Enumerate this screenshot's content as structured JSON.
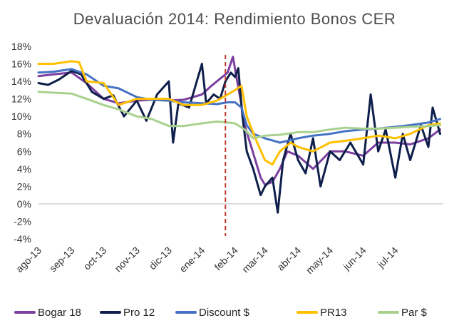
{
  "chart_data": {
    "type": "line",
    "title": "Devaluación 2014: Rendimiento Bonos CER",
    "xlabel": "",
    "ylabel": "",
    "ylim": [
      -4,
      18
    ],
    "y_ticks": [
      -4,
      -2,
      0,
      2,
      4,
      6,
      8,
      10,
      12,
      14,
      16,
      18
    ],
    "y_tick_labels": [
      "-4%",
      "-2%",
      "0%",
      "2%",
      "4%",
      "6%",
      "8%",
      "10%",
      "12%",
      "14%",
      "16%",
      "18%"
    ],
    "x_tick_labels": [
      "ago-13",
      "sep-13",
      "oct-13",
      "nov-13",
      "dic-13",
      "ene-14",
      "feb-14",
      "mar-14",
      "abr-14",
      "may-14",
      "jun-14",
      "jul-14"
    ],
    "x_domain": [
      "2013-08-01",
      "2014-08-15"
    ],
    "grid": false,
    "legend_position": "bottom",
    "event_marker": {
      "date": "2014-01-23",
      "style": "dashed",
      "color": "#c0392b"
    },
    "series": [
      {
        "name": "Bogar 18",
        "color": "#7b3fa0",
        "points": [
          [
            "2013-08-01",
            14.6
          ],
          [
            "2013-08-15",
            14.8
          ],
          [
            "2013-09-01",
            15.0
          ],
          [
            "2013-09-15",
            13.8
          ],
          [
            "2013-10-01",
            12.0
          ],
          [
            "2013-10-15",
            11.5
          ],
          [
            "2013-11-01",
            11.8
          ],
          [
            "2013-11-15",
            11.9
          ],
          [
            "2013-12-01",
            11.8
          ],
          [
            "2013-12-15",
            11.9
          ],
          [
            "2014-01-01",
            12.5
          ],
          [
            "2014-01-10",
            13.5
          ],
          [
            "2014-01-20",
            14.5
          ],
          [
            "2014-01-25",
            15.0
          ],
          [
            "2014-01-30",
            16.8
          ],
          [
            "2014-02-03",
            14.0
          ],
          [
            "2014-02-06",
            12.0
          ],
          [
            "2014-02-10",
            9.0
          ],
          [
            "2014-02-15",
            7.0
          ],
          [
            "2014-02-20",
            5.0
          ],
          [
            "2014-02-25",
            3.0
          ],
          [
            "2014-03-01",
            2.2
          ],
          [
            "2014-03-08",
            2.5
          ],
          [
            "2014-03-15",
            4.0
          ],
          [
            "2014-03-22",
            6.0
          ],
          [
            "2014-04-01",
            5.5
          ],
          [
            "2014-04-15",
            4.0
          ],
          [
            "2014-05-01",
            6.0
          ],
          [
            "2014-05-15",
            6.0
          ],
          [
            "2014-06-01",
            5.5
          ],
          [
            "2014-06-15",
            7.0
          ],
          [
            "2014-07-01",
            7.0
          ],
          [
            "2014-07-15",
            6.8
          ],
          [
            "2014-08-01",
            7.5
          ],
          [
            "2014-08-12",
            8.5
          ]
        ]
      },
      {
        "name": "Pro 12",
        "color": "#0f1f4b",
        "points": [
          [
            "2013-08-01",
            13.8
          ],
          [
            "2013-08-10",
            13.6
          ],
          [
            "2013-08-20",
            14.2
          ],
          [
            "2013-09-01",
            15.2
          ],
          [
            "2013-09-10",
            14.8
          ],
          [
            "2013-09-20",
            12.8
          ],
          [
            "2013-10-01",
            12.0
          ],
          [
            "2013-10-10",
            12.4
          ],
          [
            "2013-10-20",
            10.0
          ],
          [
            "2013-11-01",
            11.8
          ],
          [
            "2013-11-10",
            9.5
          ],
          [
            "2013-11-20",
            12.5
          ],
          [
            "2013-12-01",
            14.0
          ],
          [
            "2013-12-05",
            7.0
          ],
          [
            "2013-12-10",
            11.5
          ],
          [
            "2013-12-20",
            11.0
          ],
          [
            "2014-01-01",
            16.0
          ],
          [
            "2014-01-05",
            11.5
          ],
          [
            "2014-01-12",
            12.5
          ],
          [
            "2014-01-18",
            12.0
          ],
          [
            "2014-01-23",
            14.0
          ],
          [
            "2014-01-28",
            15.0
          ],
          [
            "2014-02-01",
            14.5
          ],
          [
            "2014-02-04",
            15.5
          ],
          [
            "2014-02-08",
            10.0
          ],
          [
            "2014-02-12",
            6.0
          ],
          [
            "2014-02-18",
            4.0
          ],
          [
            "2014-02-25",
            1.0
          ],
          [
            "2014-03-01",
            2.0
          ],
          [
            "2014-03-08",
            3.0
          ],
          [
            "2014-03-13",
            -1.0
          ],
          [
            "2014-03-18",
            5.0
          ],
          [
            "2014-03-25",
            8.0
          ],
          [
            "2014-04-01",
            5.0
          ],
          [
            "2014-04-08",
            3.5
          ],
          [
            "2014-04-15",
            7.5
          ],
          [
            "2014-04-22",
            2.0
          ],
          [
            "2014-05-01",
            6.0
          ],
          [
            "2014-05-10",
            5.0
          ],
          [
            "2014-05-20",
            7.0
          ],
          [
            "2014-06-01",
            4.5
          ],
          [
            "2014-06-08",
            12.5
          ],
          [
            "2014-06-15",
            6.0
          ],
          [
            "2014-06-22",
            8.5
          ],
          [
            "2014-07-01",
            3.0
          ],
          [
            "2014-07-08",
            8.0
          ],
          [
            "2014-07-15",
            5.0
          ],
          [
            "2014-07-25",
            9.0
          ],
          [
            "2014-08-01",
            6.5
          ],
          [
            "2014-08-05",
            11.0
          ],
          [
            "2014-08-12",
            8.0
          ]
        ]
      },
      {
        "name": "Discount $",
        "color": "#4472c4",
        "points": [
          [
            "2013-08-01",
            15.0
          ],
          [
            "2013-08-15",
            15.1
          ],
          [
            "2013-09-01",
            15.4
          ],
          [
            "2013-09-15",
            14.8
          ],
          [
            "2013-10-01",
            13.5
          ],
          [
            "2013-10-15",
            13.2
          ],
          [
            "2013-11-01",
            12.2
          ],
          [
            "2013-11-15",
            11.9
          ],
          [
            "2013-12-01",
            11.8
          ],
          [
            "2013-12-15",
            11.6
          ],
          [
            "2014-01-01",
            11.5
          ],
          [
            "2014-01-15",
            11.4
          ],
          [
            "2014-01-25",
            11.6
          ],
          [
            "2014-02-01",
            11.6
          ],
          [
            "2014-02-07",
            11.0
          ],
          [
            "2014-02-12",
            9.0
          ],
          [
            "2014-02-18",
            8.0
          ],
          [
            "2014-03-01",
            7.5
          ],
          [
            "2014-03-15",
            7.0
          ],
          [
            "2014-04-01",
            7.5
          ],
          [
            "2014-04-15",
            7.8
          ],
          [
            "2014-05-01",
            8.0
          ],
          [
            "2014-05-15",
            8.3
          ],
          [
            "2014-06-01",
            8.5
          ],
          [
            "2014-06-15",
            8.6
          ],
          [
            "2014-07-01",
            8.8
          ],
          [
            "2014-07-15",
            9.0
          ],
          [
            "2014-08-01",
            9.3
          ],
          [
            "2014-08-12",
            9.7
          ]
        ]
      },
      {
        "name": "PR13",
        "color": "#ffc000",
        "points": [
          [
            "2013-08-01",
            16.0
          ],
          [
            "2013-08-15",
            16.0
          ],
          [
            "2013-09-01",
            16.3
          ],
          [
            "2013-09-08",
            16.2
          ],
          [
            "2013-09-15",
            14.0
          ],
          [
            "2013-10-01",
            13.8
          ],
          [
            "2013-10-15",
            11.3
          ],
          [
            "2013-11-01",
            12.0
          ],
          [
            "2013-11-15",
            12.0
          ],
          [
            "2013-12-01",
            12.0
          ],
          [
            "2013-12-15",
            11.3
          ],
          [
            "2014-01-01",
            11.3
          ],
          [
            "2014-01-15",
            11.8
          ],
          [
            "2014-01-25",
            12.5
          ],
          [
            "2014-02-01",
            13.0
          ],
          [
            "2014-02-07",
            13.5
          ],
          [
            "2014-02-12",
            10.0
          ],
          [
            "2014-02-20",
            7.5
          ],
          [
            "2014-03-01",
            5.0
          ],
          [
            "2014-03-08",
            4.5
          ],
          [
            "2014-03-15",
            6.0
          ],
          [
            "2014-03-25",
            7.0
          ],
          [
            "2014-04-01",
            6.5
          ],
          [
            "2014-04-15",
            6.0
          ],
          [
            "2014-05-01",
            7.0
          ],
          [
            "2014-05-15",
            7.2
          ],
          [
            "2014-06-01",
            7.5
          ],
          [
            "2014-06-15",
            7.8
          ],
          [
            "2014-07-01",
            7.5
          ],
          [
            "2014-07-15",
            8.0
          ],
          [
            "2014-08-01",
            9.0
          ],
          [
            "2014-08-12",
            9.2
          ]
        ]
      },
      {
        "name": "Par $",
        "color": "#a9d18e",
        "points": [
          [
            "2013-08-01",
            12.8
          ],
          [
            "2013-08-15",
            12.7
          ],
          [
            "2013-09-01",
            12.6
          ],
          [
            "2013-09-15",
            12.0
          ],
          [
            "2013-10-01",
            11.3
          ],
          [
            "2013-10-15",
            10.8
          ],
          [
            "2013-11-01",
            10.0
          ],
          [
            "2013-11-15",
            9.7
          ],
          [
            "2013-12-01",
            8.9
          ],
          [
            "2013-12-15",
            8.9
          ],
          [
            "2014-01-01",
            9.2
          ],
          [
            "2014-01-15",
            9.4
          ],
          [
            "2014-01-25",
            9.3
          ],
          [
            "2014-02-01",
            9.2
          ],
          [
            "2014-02-10",
            8.5
          ],
          [
            "2014-02-18",
            7.5
          ],
          [
            "2014-03-01",
            7.8
          ],
          [
            "2014-03-15",
            7.9
          ],
          [
            "2014-04-01",
            8.2
          ],
          [
            "2014-04-15",
            8.2
          ],
          [
            "2014-05-01",
            8.5
          ],
          [
            "2014-05-15",
            8.7
          ],
          [
            "2014-06-01",
            8.6
          ],
          [
            "2014-06-15",
            8.6
          ],
          [
            "2014-07-01",
            8.7
          ],
          [
            "2014-07-15",
            8.8
          ],
          [
            "2014-08-01",
            8.9
          ],
          [
            "2014-08-12",
            9.0
          ]
        ]
      }
    ]
  }
}
